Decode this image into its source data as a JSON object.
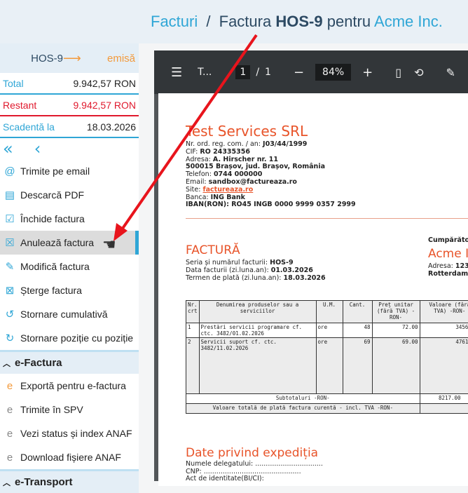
{
  "header": {
    "breadcrumb_link": "Facturi",
    "separator": "/",
    "title_prefix": "Factura",
    "invoice_no": "HOS-9",
    "title_mid": "pentru",
    "client": "Acme Inc."
  },
  "sidebar": {
    "invoice": "HOS-9",
    "arrow": "⟶",
    "status": "emisă",
    "total_label": "Total",
    "total_value": "9.942,57 RON",
    "due_label": "Restant",
    "due_value": "9.942,57 RON",
    "date_label": "Scadentă la",
    "date_value": "18.03.2026",
    "items": [
      {
        "label": "Trimite pe email",
        "icon": "at-icon"
      },
      {
        "label": "Descarcă PDF",
        "icon": "pdf-icon"
      },
      {
        "label": "Închide factura",
        "icon": "close-invoice-icon"
      },
      {
        "label": "Anulează factura",
        "icon": "cancel-invoice-icon"
      },
      {
        "label": "Modifică factura",
        "icon": "edit-invoice-icon"
      },
      {
        "label": "Șterge factura",
        "icon": "delete-icon"
      },
      {
        "label": "Stornare cumulativă",
        "icon": "storno-cumulative-icon"
      },
      {
        "label": "Stornare poziție cu poziție",
        "icon": "storno-position-icon"
      }
    ],
    "efactura_title": "e-Factura",
    "efactura_items": [
      {
        "label": "Exportă pentru e-factura",
        "icon": "export-efactura-icon"
      },
      {
        "label": "Trimite în SPV",
        "icon": "upload-spv-icon"
      },
      {
        "label": "Vezi status și index ANAF",
        "icon": "status-anaf-icon"
      },
      {
        "label": "Download fișiere ANAF",
        "icon": "download-anaf-icon"
      }
    ],
    "etransport_title": "e-Transport"
  },
  "viewer": {
    "doc_title": "T...",
    "page": "1",
    "page_sep": "/",
    "pages": "1",
    "zoom": "84%"
  },
  "pdf": {
    "company": "Test Services SRL",
    "reg_label": "Nr. ord. reg. com. / an:",
    "reg": "J03/44/1999",
    "cif_label": "CIF:",
    "cif": "RO 24335356",
    "addr_label": "Adresa:",
    "addr": "A. Hirscher nr. 11",
    "city": "500015 Brașov, jud. Brașov, România",
    "tel_label": "Telefon:",
    "tel": "0744 000000",
    "email_label": "Email:",
    "email": "sandbox@factureaza.ro",
    "site_label": "Site:",
    "site": "factureaza.ro",
    "bank_label": "Banca:",
    "bank": "ING Bank",
    "iban": "IBAN(RON): RO45 INGB 0000 9999 0357 2999",
    "doc_type": "FACTURĂ",
    "series_label": "Seria și numărul facturii:",
    "series": "HOS-9",
    "date_label": "Data facturii (zi.luna.an):",
    "date": "01.03.2026",
    "term_label": "Termen de plată (zi.luna.an):",
    "term": "18.03.2026",
    "buyer_label": "Cumpărător",
    "buyer": "Acme In",
    "buyer_addr_label": "Adresa:",
    "buyer_addr": "123",
    "buyer_city": "Rotterdam,",
    "columns": [
      "Nr. crt",
      "Denumirea produselor sau a serviciilor",
      "U.M.",
      "Cant.",
      "Preț unitar (fără TVA) -RON-",
      "Valoare (fără TVA) -RON-"
    ],
    "rows": [
      {
        "nr": "1",
        "desc": "Prestări servicii programare cf. ctc. 3482/01.02.2026",
        "um": "ore",
        "qty": "48",
        "price": "72.00",
        "value": "3456.00"
      },
      {
        "nr": "2",
        "desc": "Servicii suport cf. ctc. 3482/11.02.2026",
        "um": "ore",
        "qty": "69",
        "price": "69.00",
        "value": "4761.00"
      }
    ],
    "subtotal_label": "Subtotaluri -RON-",
    "subtotal": "8217.00",
    "total_label": "Valoare totală de plată factura curentă - incl. TVA -RON-",
    "shipping_title": "Date privind expediția",
    "delegate": "Numele delegatului: ................................",
    "cnp": "CNP: ..............................................",
    "id_doc": "Act de identitate(BI/CI):"
  },
  "colors": {
    "accent": "#2fa6d6",
    "status": "#f39a3c",
    "danger": "#e0192d",
    "pdf_orange": "#e8542a",
    "toolbar": "#323639"
  }
}
